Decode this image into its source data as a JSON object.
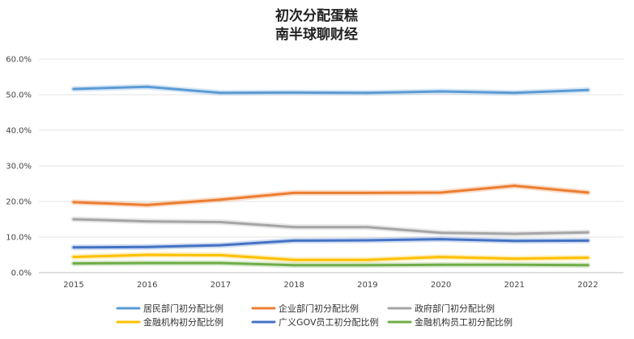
{
  "chart_data": {
    "type": "line",
    "title": "初次分配蛋糕",
    "subtitle": "南半球聊财经",
    "xlabel": "",
    "ylabel": "",
    "categories": [
      "2015",
      "2016",
      "2017",
      "2018",
      "2019",
      "2020",
      "2021",
      "2022"
    ],
    "ylim": [
      0,
      60
    ],
    "yticks": [
      0,
      10,
      20,
      30,
      40,
      50,
      60
    ],
    "ytick_labels": [
      "0.0%",
      "10.0%",
      "20.0%",
      "30.0%",
      "40.0%",
      "50.0%",
      "60.0%"
    ],
    "grid": true,
    "legend_position": "bottom",
    "series": [
      {
        "name": "居民部门初分配比例",
        "color": "#5B9BD5",
        "values": [
          51.6,
          52.2,
          50.5,
          50.6,
          50.5,
          50.9,
          50.5,
          51.3
        ]
      },
      {
        "name": "企业部门初分配比例",
        "color": "#ED7D31",
        "values": [
          19.8,
          19.0,
          20.5,
          22.4,
          22.4,
          22.5,
          24.4,
          22.5
        ]
      },
      {
        "name": "政府部门初分配比例",
        "color": "#A5A5A5",
        "values": [
          15.0,
          14.4,
          14.2,
          12.8,
          12.8,
          11.2,
          10.9,
          11.3
        ]
      },
      {
        "name": "金融机构初分配比例",
        "color": "#FFC000",
        "values": [
          4.4,
          5.0,
          4.9,
          3.6,
          3.6,
          4.4,
          3.9,
          4.2
        ]
      },
      {
        "name": "广义GOV员工初分配比例",
        "color": "#4472C4",
        "values": [
          7.1,
          7.2,
          7.7,
          9.0,
          9.1,
          9.4,
          8.9,
          9.0
        ]
      },
      {
        "name": "金融机构员工初分配比例",
        "color": "#70AD47",
        "values": [
          2.6,
          2.7,
          2.7,
          2.1,
          2.1,
          2.2,
          2.2,
          2.1
        ]
      }
    ]
  }
}
